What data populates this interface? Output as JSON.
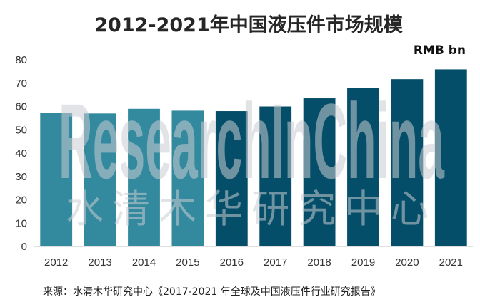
{
  "chart_data": {
    "type": "bar",
    "title": "2012-2021年中国液压件市场规模",
    "unit": "RMB bn",
    "categories": [
      "2012",
      "2013",
      "2014",
      "2015",
      "2016",
      "2017",
      "2018",
      "2019",
      "2020",
      "2021"
    ],
    "values": [
      57.3,
      57.0,
      59.0,
      58.2,
      58.0,
      60.0,
      63.5,
      67.8,
      71.7,
      75.9
    ],
    "bar_colors": [
      "#338a9e",
      "#338a9e",
      "#338a9e",
      "#338a9e",
      "#044e69",
      "#044e69",
      "#044e69",
      "#044e69",
      "#044e69",
      "#044e69"
    ],
    "ylim": [
      0,
      80
    ],
    "yticks": [
      0,
      10,
      20,
      30,
      40,
      50,
      60,
      70,
      80
    ],
    "grid": false,
    "legend": "none"
  },
  "watermark": {
    "en": "ResearchInChina",
    "cn": "水清木华研究中心"
  },
  "source": "来源：水清木华研究中心《2017-2021 年全球及中国液压件行业研究报告》"
}
